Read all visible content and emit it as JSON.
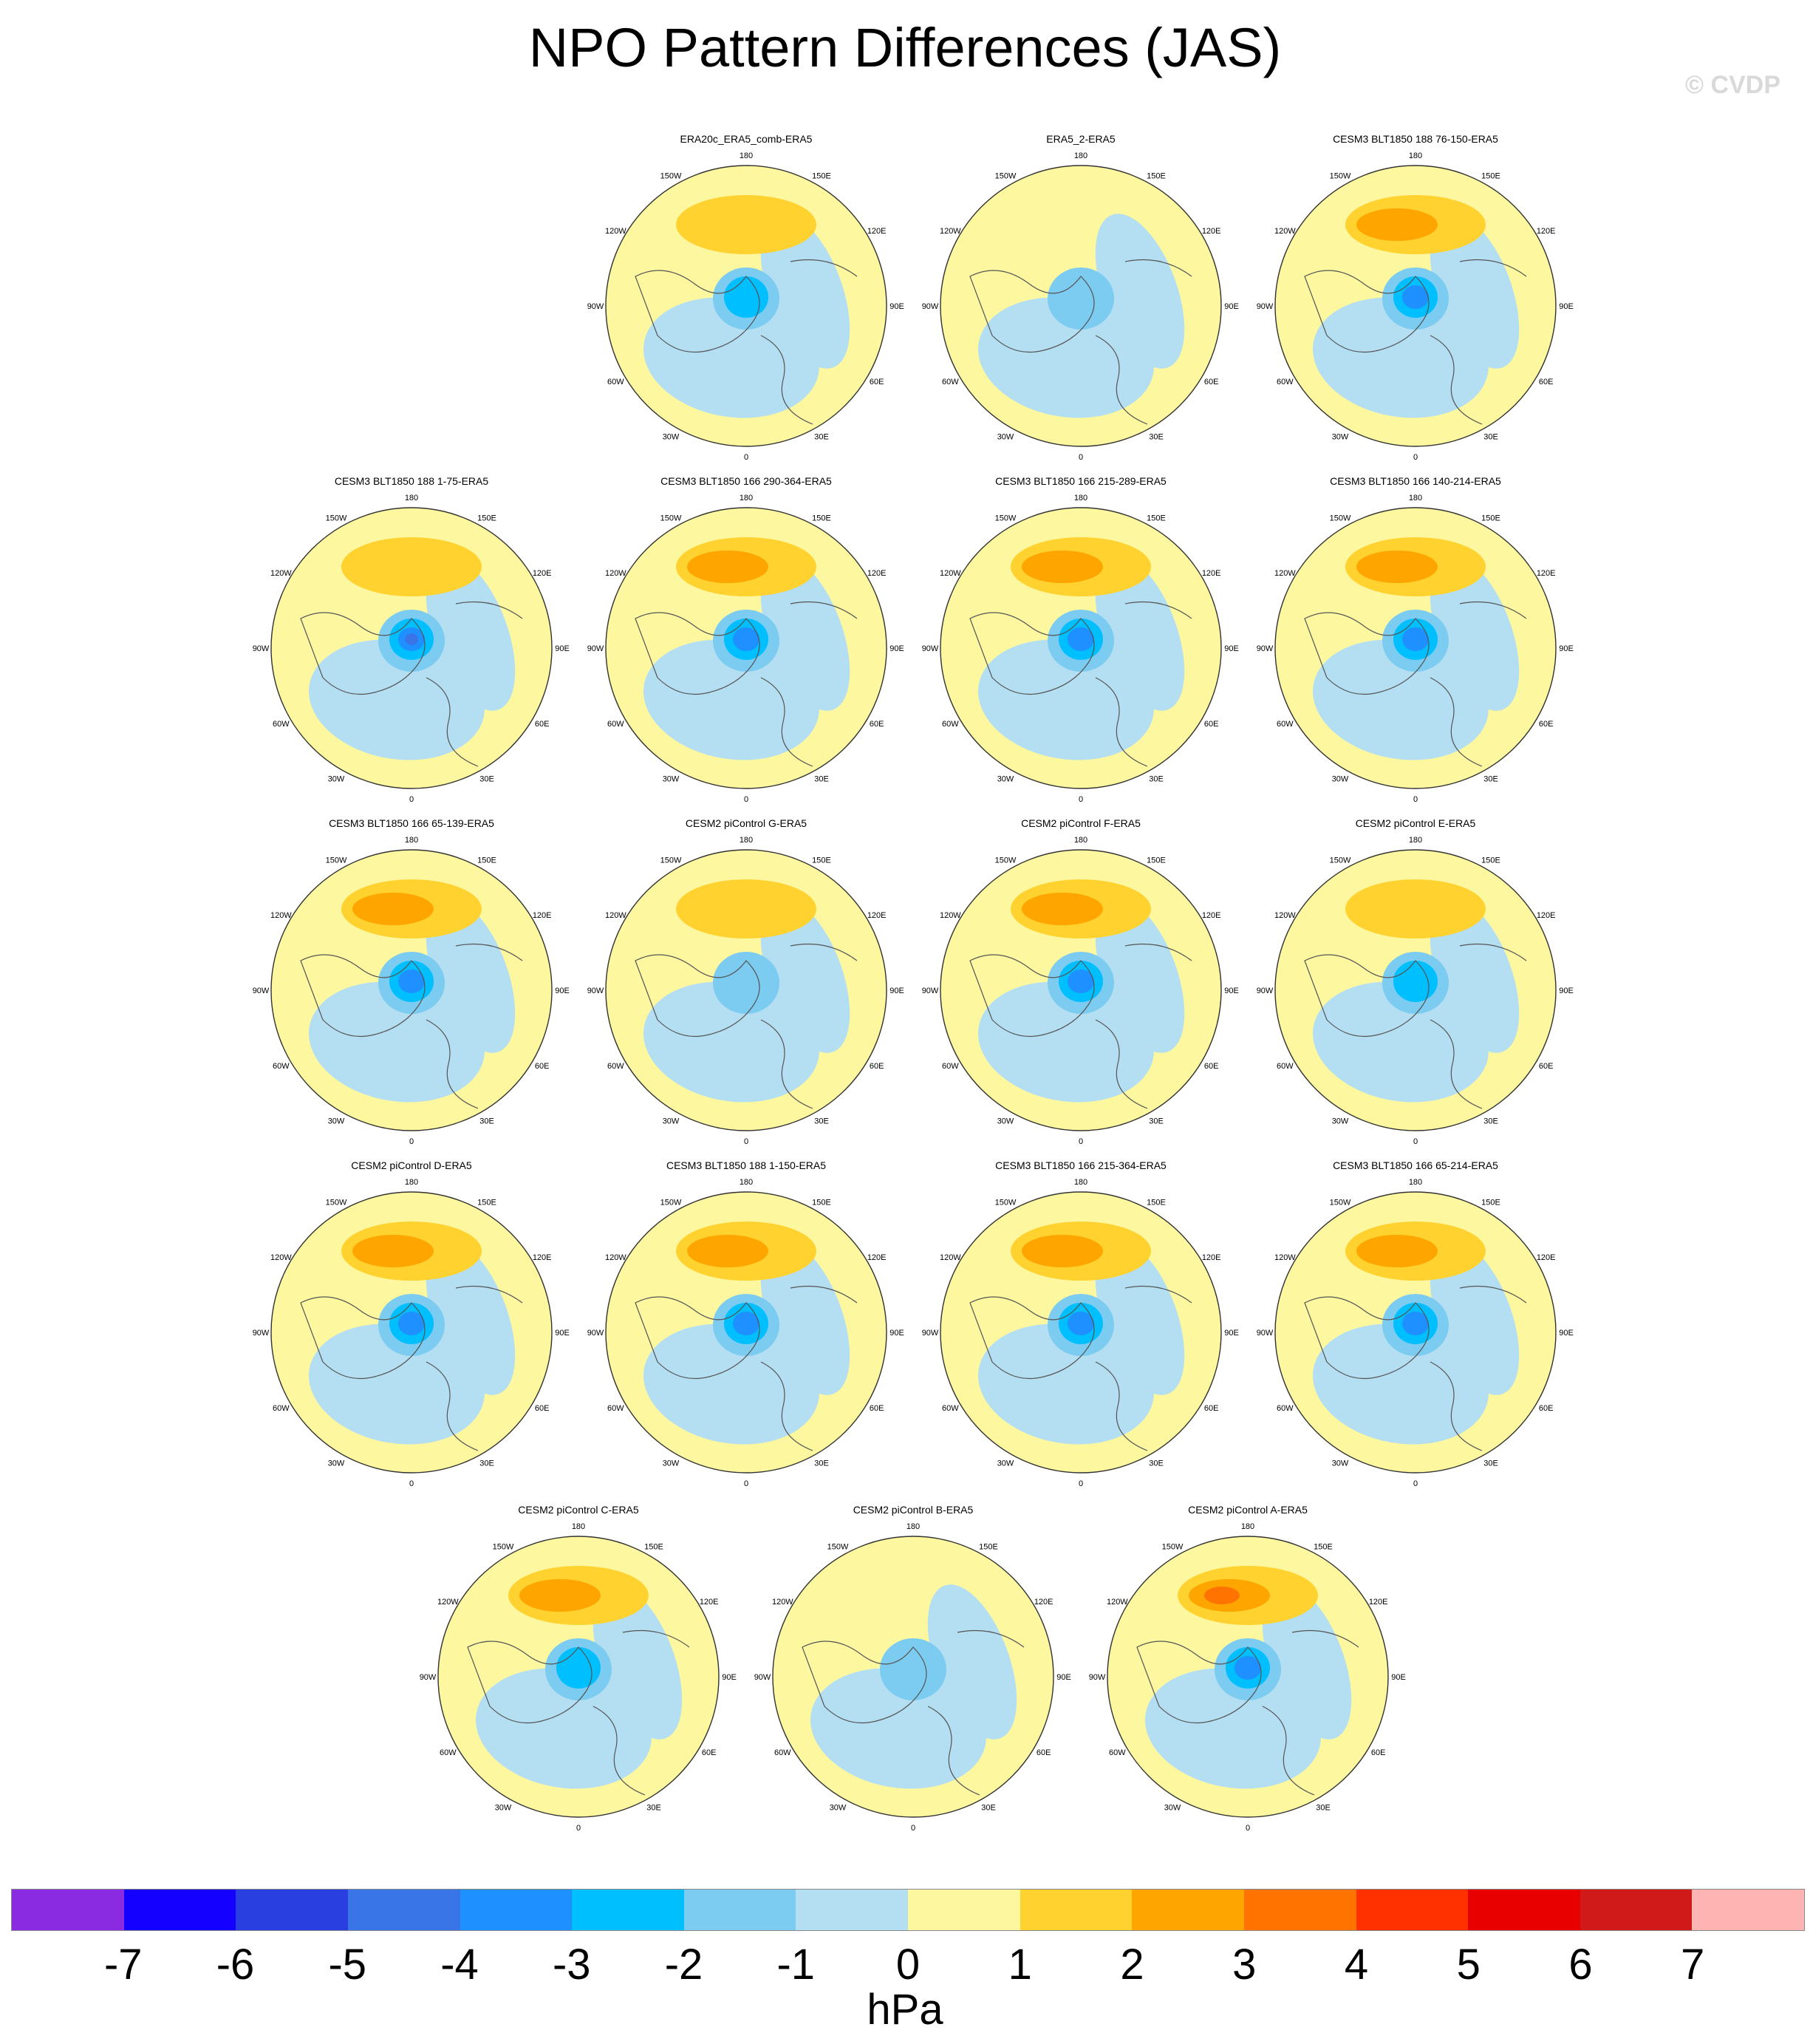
{
  "title": "NPO Pattern Differences (JAS)",
  "watermark": "© CVDP",
  "units": "hPa",
  "grid_labels": [
    "180",
    "150E",
    "120E",
    "90E",
    "60E",
    "30E",
    "0",
    "30W",
    "60W",
    "90W",
    "120W",
    "150W"
  ],
  "colorbar": {
    "colors": [
      "#8a2be2",
      "#1400ff",
      "#2a3fe0",
      "#3a75e8",
      "#1e90ff",
      "#00bfff",
      "#7ccbf0",
      "#b4def2",
      "#fdf7a0",
      "#ffd230",
      "#ffa500",
      "#ff7400",
      "#ff3100",
      "#e80000",
      "#d01a1a",
      "#ffb4b4"
    ],
    "labels": [
      "-7",
      "-6",
      "-5",
      "-4",
      "-3",
      "-2",
      "-1",
      "0",
      "1",
      "2",
      "3",
      "4",
      "5",
      "6",
      "7"
    ]
  },
  "panels": [
    {
      "title": "ERA20c_ERA5_comb-ERA5",
      "warm": 1,
      "cool": 2
    },
    {
      "title": "ERA5_2-ERA5",
      "warm": 0,
      "cool": 1
    },
    {
      "title": "CESM3 BLT1850 188 76-150-ERA5",
      "warm": 2,
      "cool": 3
    },
    {
      "title": "CESM3 BLT1850 188 1-75-ERA5",
      "warm": 1,
      "cool": 4
    },
    {
      "title": "CESM3 BLT1850 166 290-364-ERA5",
      "warm": 2,
      "cool": 3
    },
    {
      "title": "CESM3 BLT1850 166 215-289-ERA5",
      "warm": 2,
      "cool": 3
    },
    {
      "title": "CESM3 BLT1850 166 140-214-ERA5",
      "warm": 2,
      "cool": 3
    },
    {
      "title": "CESM3 BLT1850 166 65-139-ERA5",
      "warm": 2,
      "cool": 3
    },
    {
      "title": "CESM2 piControl G-ERA5",
      "warm": 1,
      "cool": 1
    },
    {
      "title": "CESM2 piControl F-ERA5",
      "warm": 2,
      "cool": 3
    },
    {
      "title": "CESM2 piControl E-ERA5",
      "warm": 1,
      "cool": 2
    },
    {
      "title": "CESM2 piControl D-ERA5",
      "warm": 2,
      "cool": 3
    },
    {
      "title": "CESM3 BLT1850 188 1-150-ERA5",
      "warm": 2,
      "cool": 3
    },
    {
      "title": "CESM3 BLT1850 166 215-364-ERA5",
      "warm": 2,
      "cool": 3
    },
    {
      "title": "CESM3 BLT1850 166 65-214-ERA5",
      "warm": 2,
      "cool": 3
    },
    {
      "title": "CESM2 piControl C-ERA5",
      "warm": 2,
      "cool": 2
    },
    {
      "title": "CESM2 piControl B-ERA5",
      "warm": 0,
      "cool": 1
    },
    {
      "title": "CESM2 piControl A-ERA5",
      "warm": 3,
      "cool": 3
    }
  ]
}
